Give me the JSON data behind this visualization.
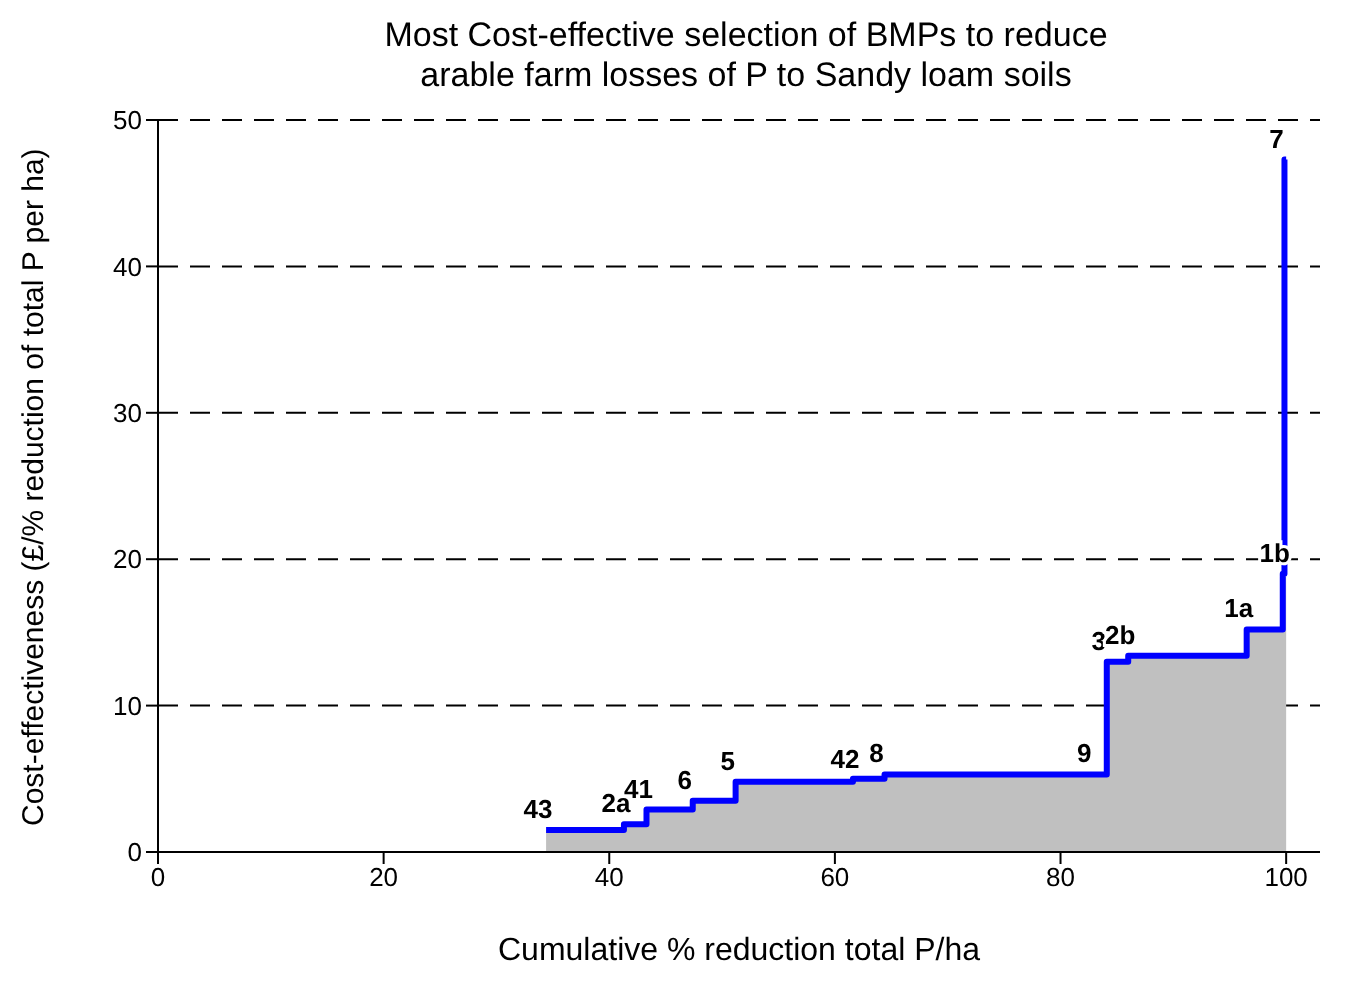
{
  "chart_data": {
    "type": "step",
    "title": "Most Cost-effective selection of BMPs to reduce\narable farm losses of P to Sandy loam soils",
    "xlabel": "Cumulative % reduction total P/ha",
    "ylabel": "Cost-effectiveness (£/% reduction of total P per ha)",
    "x": [
      34.4,
      41.3,
      43.3,
      47.4,
      51.2,
      61.6,
      64.4,
      82.8,
      84.1,
      86.0,
      96.5,
      99.7,
      99.85,
      100
    ],
    "series": [
      {
        "type": "area",
        "color": "#c0c0c0",
        "values": [
          1.5,
          1.9,
          2.9,
          3.5,
          4.8,
          5.0,
          5.3,
          5.3,
          13.0,
          13.4,
          15.2,
          19.0,
          47.3,
          47.3
        ]
      },
      {
        "color": "#0000ff",
        "values": [
          1.5,
          1.9,
          2.9,
          3.5,
          4.8,
          5.0,
          5.3,
          5.3,
          13.0,
          13.4,
          15.2,
          19.0,
          47.3,
          47.3
        ]
      }
    ],
    "annotations": [
      {
        "text": "43",
        "x": 34.4,
        "y": 1.5
      },
      {
        "text": "2a",
        "x": 41.3,
        "y": 1.9
      },
      {
        "text": "41",
        "x": 43.3,
        "y": 2.85
      },
      {
        "text": "6",
        "x": 47.4,
        "y": 3.5
      },
      {
        "text": "5",
        "x": 51.2,
        "y": 4.8
      },
      {
        "text": "42",
        "x": 61.6,
        "y": 4.95
      },
      {
        "text": "8",
        "x": 64.4,
        "y": 5.3
      },
      {
        "text": "9",
        "x": 82.8,
        "y": 5.3
      },
      {
        "text": "3",
        "x": 84.1,
        "y": 12.95
      },
      {
        "text": "2b",
        "x": 86.0,
        "y": 13.4
      },
      {
        "text": "1a",
        "x": 96.5,
        "y": 15.2
      },
      {
        "text": "1b",
        "x": 99.7,
        "y": 19.0
      },
      {
        "text": "7",
        "x": 99.85,
        "y": 47.3
      }
    ],
    "xlim": [
      0,
      103
    ],
    "xticks": [
      0,
      20,
      40,
      60,
      80,
      100
    ],
    "ylim": [
      0,
      50
    ],
    "yticks": [
      0,
      10,
      20,
      30,
      40,
      50
    ],
    "grid": "y",
    "legend": false
  }
}
